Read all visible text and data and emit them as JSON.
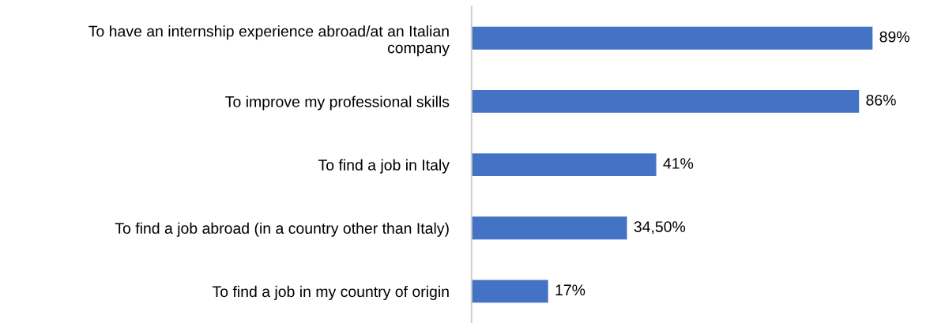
{
  "chart_data": {
    "type": "bar",
    "orientation": "horizontal",
    "data_labels": true,
    "categories": [
      "To have an internship experience abroad/at an Italian\ncompany",
      "To improve my professional skills",
      "To find a job in Italy",
      "To find a job abroad (in a country other than Italy)",
      "To find a job in my country of origin"
    ],
    "values": [
      89,
      86,
      41,
      34.5,
      17
    ],
    "value_labels": [
      "89%",
      "86%",
      "41%",
      "34,50%",
      "17%"
    ],
    "color": "#4472c4",
    "grid": false,
    "legend": false
  }
}
